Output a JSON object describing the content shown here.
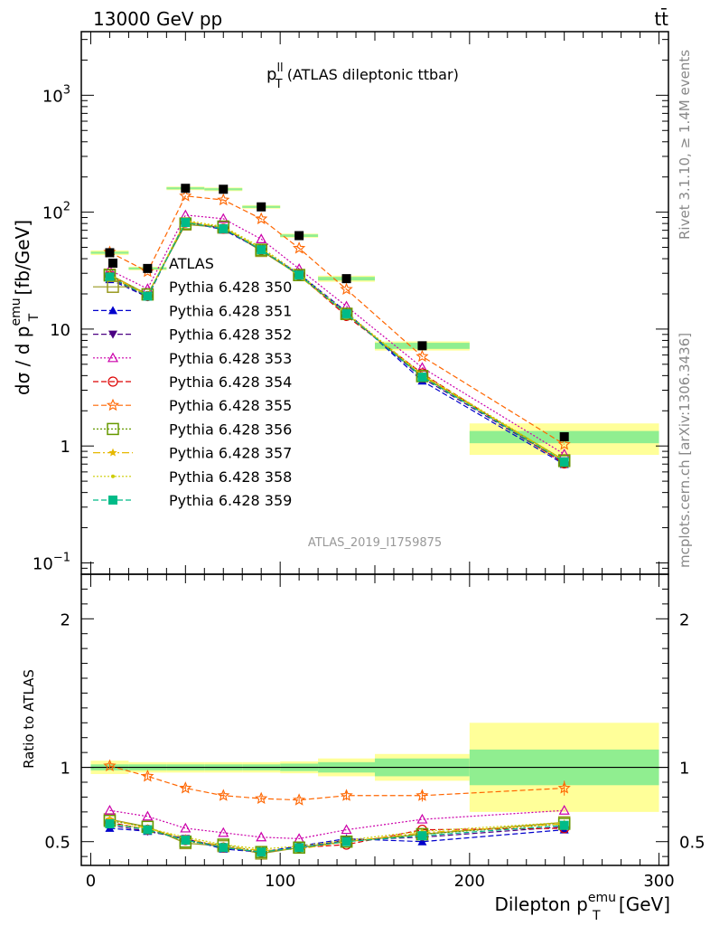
{
  "header": {
    "energy_label": "13000 GeV pp",
    "process_label": "tt̄",
    "analysis_title_main": "p",
    "analysis_title_sup": "ll",
    "analysis_title_sub": "T",
    "analysis_title_rest": " (ATLAS dileptonic ttbar)",
    "analysis_id": "ATLAS_2019_I1759875",
    "side_label_top": "Rivet 3.1.10, ≥ 1.4M events",
    "side_label_bottom": "mcplots.cern.ch [arXiv:1306.3436]"
  },
  "axes": {
    "ylabel_main_prefix": "dσ / d p",
    "ylabel_main_sup": "emu",
    "ylabel_main_sub": "T",
    "ylabel_main_suffix": " [fb/GeV]",
    "ylabel_ratio": "Ratio to ATLAS",
    "xlabel_prefix": "Dilepton p",
    "xlabel_sup": "emu",
    "xlabel_sub": "T",
    "xlabel_suffix": " [GeV]",
    "x_ticks": [
      "0",
      "100",
      "200",
      "300"
    ],
    "y_main_ticks": [
      {
        "value": 0.1,
        "base": "10",
        "exp": "−1"
      },
      {
        "value": 1,
        "base": "1",
        "exp": ""
      },
      {
        "value": 10,
        "base": "10",
        "exp": ""
      },
      {
        "value": 100,
        "base": "10",
        "exp": "2"
      },
      {
        "value": 1000,
        "base": "10",
        "exp": "3"
      }
    ],
    "y_ratio_ticks": [
      "0.5",
      "1",
      "2"
    ]
  },
  "chart_data": {
    "type": "line",
    "x": [
      10,
      30,
      50,
      70,
      90,
      110,
      135,
      175,
      250
    ],
    "xlim": [
      -5,
      305
    ],
    "ylim_main": [
      0.08,
      3500
    ],
    "ylog_main": true,
    "ylim_ratio": [
      0.34,
      2.3
    ],
    "ratio_ticks": [
      0.5,
      1,
      2
    ],
    "legend_position": "top-left",
    "bins": [
      [
        0,
        20
      ],
      [
        20,
        40
      ],
      [
        40,
        60
      ],
      [
        60,
        80
      ],
      [
        80,
        100
      ],
      [
        100,
        120
      ],
      [
        120,
        150
      ],
      [
        150,
        200
      ],
      [
        200,
        300
      ]
    ],
    "data": {
      "name": "ATLAS",
      "values": [
        45,
        33,
        160,
        157,
        111,
        63,
        27,
        7.2,
        1.2
      ],
      "color": "#000000",
      "marker": "filled-square"
    },
    "band_inner": [
      0.02,
      0.02,
      0.02,
      0.02,
      0.02,
      0.025,
      0.035,
      0.06,
      0.12
    ],
    "band_outer": [
      0.045,
      0.035,
      0.035,
      0.035,
      0.035,
      0.04,
      0.06,
      0.09,
      0.3
    ],
    "band_colors": {
      "inner": "#90ee90",
      "outer": "#ffff99"
    },
    "series": [
      {
        "name": "Pythia 6.428 350",
        "color": "#99991f",
        "marker": "open-square",
        "dash": "solid",
        "ratio": [
          0.65,
          0.6,
          0.49,
          0.47,
          0.42,
          0.46,
          0.5,
          0.55,
          0.63
        ]
      },
      {
        "name": "Pythia 6.428 351",
        "color": "#0000cc",
        "marker": "triangle-up",
        "dash": "6,3",
        "ratio": [
          0.59,
          0.57,
          0.52,
          0.45,
          0.43,
          0.47,
          0.52,
          0.5,
          0.58
        ]
      },
      {
        "name": "Pythia 6.428 352",
        "color": "#4b0082",
        "marker": "triangle-down",
        "dash": "6,3",
        "ratio": [
          0.61,
          0.57,
          0.52,
          0.46,
          0.43,
          0.46,
          0.51,
          0.53,
          0.6
        ]
      },
      {
        "name": "Pythia 6.428 353",
        "color": "#cc00aa",
        "marker": "open-triangle",
        "dash": "2,2",
        "ratio": [
          0.71,
          0.67,
          0.59,
          0.56,
          0.53,
          0.52,
          0.58,
          0.65,
          0.71
        ]
      },
      {
        "name": "Pythia 6.428 354",
        "color": "#dd0000",
        "marker": "open-circle",
        "dash": "6,3",
        "ratio": [
          0.63,
          0.58,
          0.51,
          0.46,
          0.43,
          0.46,
          0.48,
          0.58,
          0.59
        ]
      },
      {
        "name": "Pythia 6.428 355",
        "color": "#ff6600",
        "marker": "open-star",
        "dash": "6,3",
        "ratio": [
          1.01,
          0.94,
          0.86,
          0.81,
          0.79,
          0.78,
          0.81,
          0.81,
          0.86
        ]
      },
      {
        "name": "Pythia 6.428 356",
        "color": "#669900",
        "marker": "open-square",
        "dash": "2,2",
        "ratio": [
          0.64,
          0.6,
          0.5,
          0.48,
          0.43,
          0.46,
          0.5,
          0.55,
          0.62
        ]
      },
      {
        "name": "Pythia 6.428 357",
        "color": "#e6b800",
        "marker": "small-star",
        "dash": "8,3,2,3",
        "ratio": [
          0.65,
          0.59,
          0.52,
          0.47,
          0.44,
          0.45,
          0.5,
          0.56,
          0.62
        ]
      },
      {
        "name": "Pythia 6.428 358",
        "color": "#cccc00",
        "marker": "dot",
        "dash": "2,2",
        "ratio": [
          0.62,
          0.59,
          0.53,
          0.48,
          0.45,
          0.47,
          0.51,
          0.57,
          0.63
        ]
      },
      {
        "name": "Pythia 6.428 359",
        "color": "#00bb88",
        "marker": "filled-square",
        "dash": "6,3",
        "ratio": [
          0.62,
          0.58,
          0.51,
          0.46,
          0.43,
          0.46,
          0.5,
          0.54,
          0.61
        ]
      }
    ],
    "ratio_errors": {
      "Pythia 6.428 355": [
        0.02,
        0.02,
        0.02,
        0.02,
        0.02,
        0.02,
        0.03,
        0.04,
        0.05
      ]
    }
  }
}
